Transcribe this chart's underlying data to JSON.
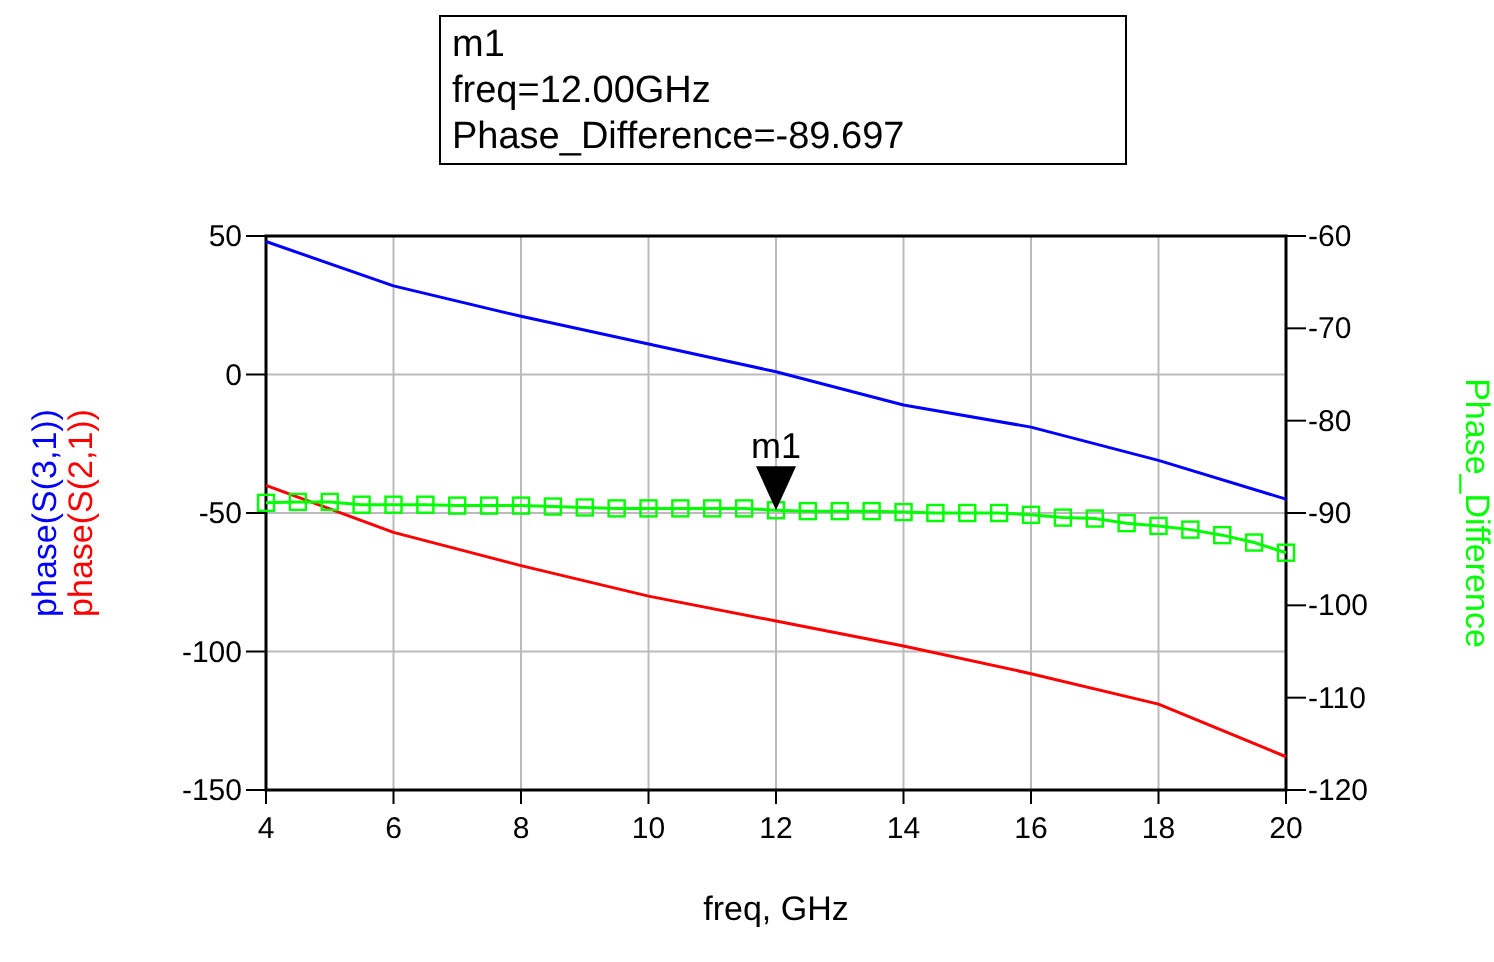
{
  "chart_data": {
    "type": "line",
    "xlabel": "freq, GHz",
    "y2label": "Phase_Difference",
    "x": [
      4,
      6,
      8,
      10,
      12,
      14,
      16,
      18,
      20
    ],
    "xlim": [
      4,
      20
    ],
    "xticks": [
      4,
      6,
      8,
      10,
      12,
      14,
      16,
      18,
      20
    ],
    "ylim": [
      -150,
      50
    ],
    "yticks": [
      -150,
      -100,
      -50,
      0,
      50
    ],
    "y2lim": [
      -120,
      -60
    ],
    "y2ticks": [
      -120,
      -110,
      -100,
      -90,
      -80,
      -70,
      -60
    ],
    "grid": true,
    "legend": "left",
    "series": [
      {
        "name": "phase(S(3,1))",
        "color": "#0000ff",
        "values": [
          48,
          32,
          21,
          11,
          1,
          -11,
          -19,
          -31,
          -45
        ]
      },
      {
        "name": "phase(S(2,1))",
        "color": "#ff0000",
        "values": [
          -40,
          -57,
          -69,
          -80,
          -89,
          -98,
          -108,
          -119,
          -138
        ]
      },
      {
        "color": "#00ff00",
        "axis": "y2",
        "marker": "square",
        "x": [
          4,
          4.5,
          5,
          5.5,
          6,
          6.5,
          7,
          7.5,
          8,
          8.5,
          9,
          9.5,
          10,
          10.5,
          11,
          11.5,
          12,
          12.5,
          13,
          13.5,
          14,
          14.5,
          15,
          15.5,
          16,
          16.5,
          17,
          17.5,
          18,
          18.5,
          19,
          19.5,
          20
        ],
        "values": [
          -88.9,
          -88.8,
          -88.8,
          -89.1,
          -89.1,
          -89.1,
          -89.2,
          -89.2,
          -89.2,
          -89.3,
          -89.4,
          -89.5,
          -89.5,
          -89.5,
          -89.5,
          -89.5,
          -89.7,
          -89.8,
          -89.8,
          -89.8,
          -89.9,
          -90,
          -90,
          -90,
          -90.2,
          -90.5,
          -90.6,
          -91.1,
          -91.4,
          -91.8,
          -92.4,
          -93.2,
          -94.3
        ]
      }
    ],
    "annotations": [
      {
        "text": "m1",
        "x": 12,
        "y": -49
      },
      "m1",
      "freq=12.00GHz",
      "Phase_Difference=-89.697"
    ]
  }
}
